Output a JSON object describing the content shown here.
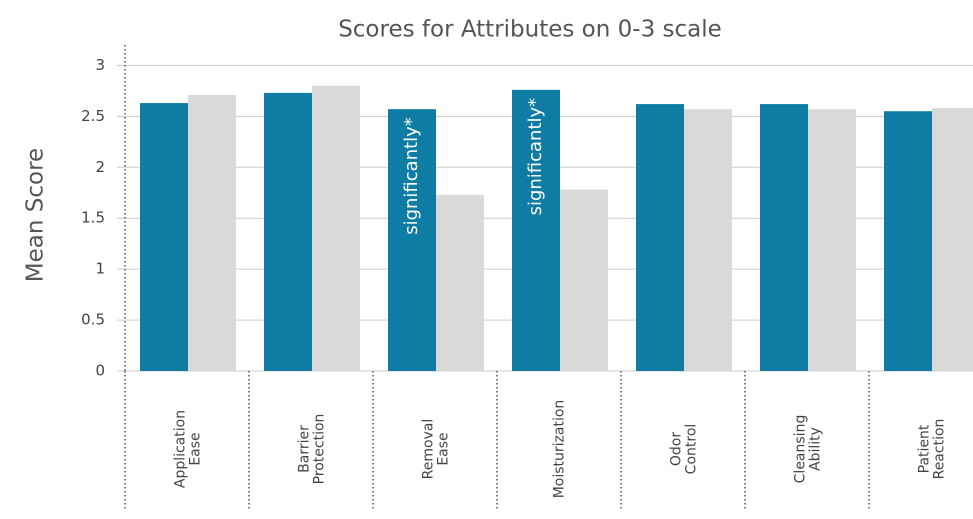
{
  "chart_data": {
    "type": "bar",
    "title": "Scores for Attributes on 0-3 scale",
    "y_label": "Mean Score",
    "categories": [
      "Application\nEase",
      "Barrier\nProtection",
      "Removal\nEase",
      "Moisturization",
      "Odor\nControl",
      "Cleansing\nAbility",
      "Patient\nReaction"
    ],
    "series": [
      {
        "color": "#0f7ca3",
        "values": [
          2.63,
          2.73,
          2.57,
          2.76,
          2.62,
          2.62,
          2.55
        ]
      },
      {
        "color": "#d9d9d9",
        "values": [
          2.71,
          2.8,
          1.73,
          1.78,
          2.57,
          2.57,
          2.58
        ]
      }
    ],
    "annotations": [
      {
        "text": "significantly*",
        "category": "Removal\nEase"
      },
      {
        "text": "significantly*",
        "category": "Moisturization"
      }
    ],
    "ylim": [
      0,
      3.2
    ],
    "yticks": [
      0,
      0.5,
      1,
      1.5,
      2,
      2.5,
      3
    ],
    "grid": true
  }
}
